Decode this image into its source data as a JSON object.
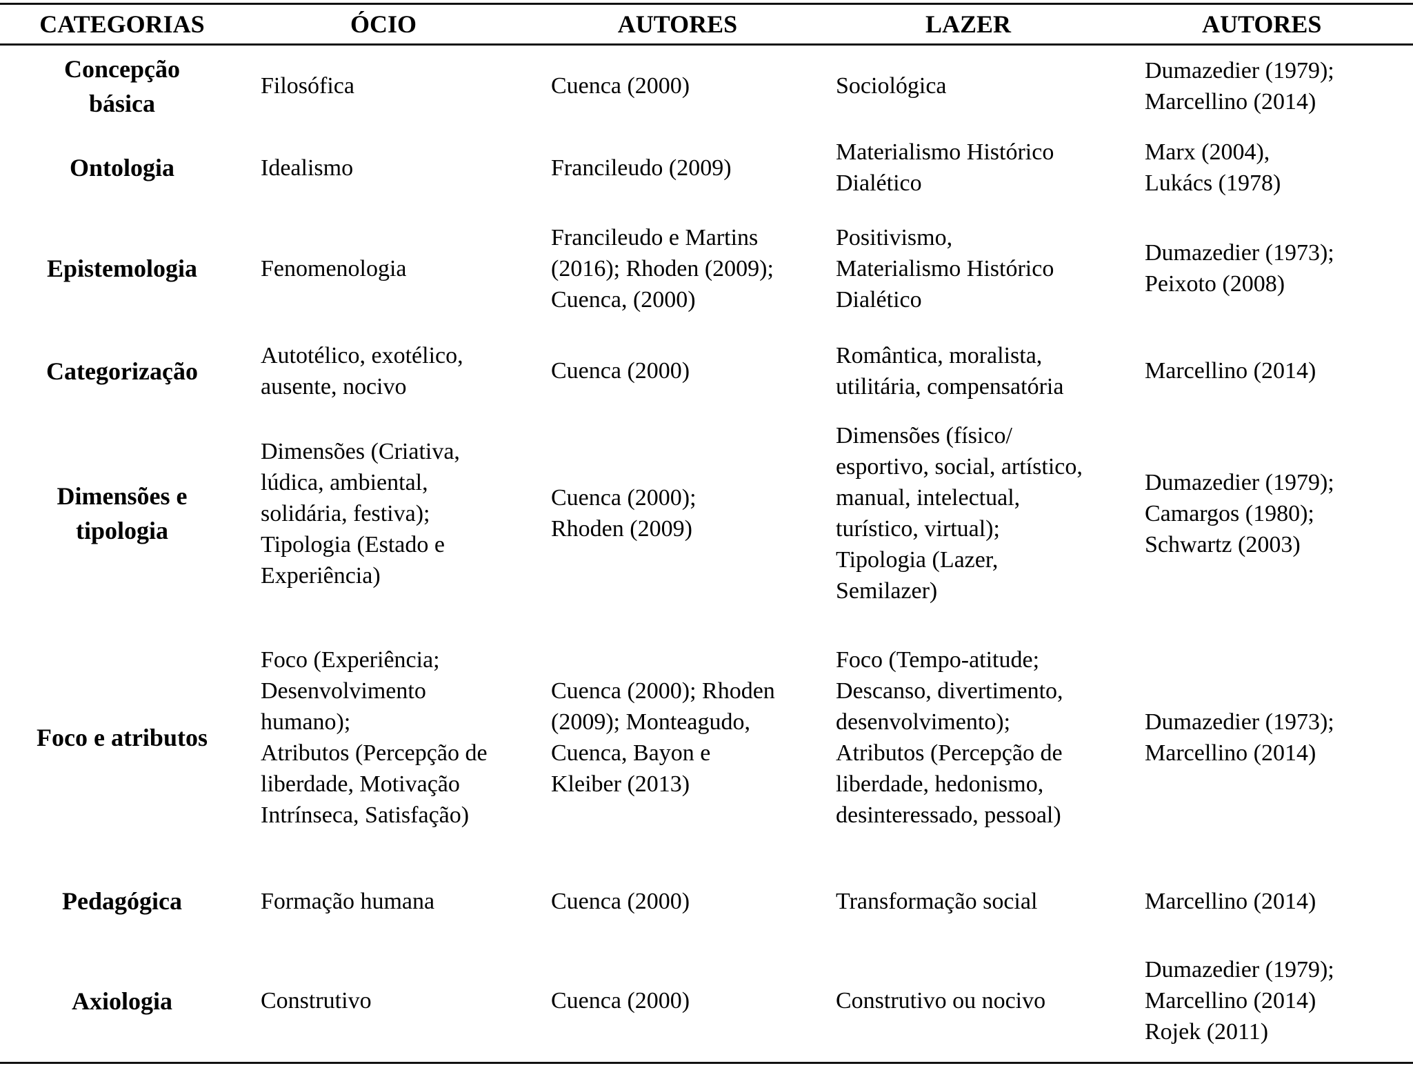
{
  "headers": [
    "CATEGORIAS",
    "ÓCIO",
    "AUTORES",
    "LAZER",
    "AUTORES"
  ],
  "rows": [
    {
      "categoria": "Concepção\nbásica",
      "ocio": "Filosófica",
      "autores_ocio": "Cuenca (2000)",
      "lazer": "Sociológica",
      "autores_lazer": "Dumazedier (1979);\nMarcellino (2014)"
    },
    {
      "categoria": "Ontologia",
      "ocio": "Idealismo",
      "autores_ocio": "Francileudo (2009)",
      "lazer": "Materialismo Histórico\nDialético",
      "autores_lazer": "Marx (2004),\nLukács (1978)"
    },
    {
      "categoria": "Epistemologia",
      "ocio": "Fenomenologia",
      "autores_ocio": "Francileudo e Martins\n(2016); Rhoden (2009);\nCuenca, (2000)",
      "lazer": "Positivismo,\nMaterialismo Histórico\nDialético",
      "autores_lazer": "Dumazedier (1973);\nPeixoto (2008)"
    },
    {
      "categoria": "Categorização",
      "ocio": "Autotélico, exotélico,\nausente, nocivo",
      "autores_ocio": "Cuenca (2000)",
      "lazer": "Romântica, moralista,\nutilitária, compensatória",
      "autores_lazer": "Marcellino (2014)"
    },
    {
      "categoria": "Dimensões e\ntipologia",
      "ocio": "Dimensões (Criativa,\nlúdica, ambiental,\nsolidária, festiva);\nTipologia (Estado e\nExperiência)",
      "autores_ocio": "Cuenca (2000);\nRhoden (2009)",
      "lazer": "Dimensões (físico/\nesportivo, social, artístico,\nmanual, intelectual,\nturístico, virtual);\nTipologia (Lazer,\nSemilazer)",
      "autores_lazer": "Dumazedier (1979);\nCamargos (1980);\nSchwartz (2003)"
    },
    {
      "categoria": "Foco e atributos",
      "ocio": "Foco (Experiência;\nDesenvolvimento\nhumano);\nAtributos (Percepção de\nliberdade, Motivação\nIntrínseca, Satisfação)",
      "autores_ocio": "Cuenca (2000); Rhoden\n(2009); Monteagudo,\nCuenca, Bayon e\nKleiber (2013)",
      "lazer": "Foco (Tempo-atitude;\nDescanso, divertimento,\ndesenvolvimento);\nAtributos (Percepção de\nliberdade, hedonismo,\ndesinteressado, pessoal)",
      "autores_lazer": "Dumazedier (1973);\nMarcellino (2014)"
    },
    {
      "categoria": "Pedagógica",
      "ocio": "Formação humana",
      "autores_ocio": "Cuenca (2000)",
      "lazer": "Transformação social",
      "autores_lazer": "Marcellino (2014)"
    },
    {
      "categoria": "Axiologia",
      "ocio": "Construtivo",
      "autores_ocio": "Cuenca (2000)",
      "lazer": "Construtivo ou nocivo",
      "autores_lazer": "Dumazedier (1979);\nMarcellino (2014)\nRojek (2011)"
    }
  ]
}
